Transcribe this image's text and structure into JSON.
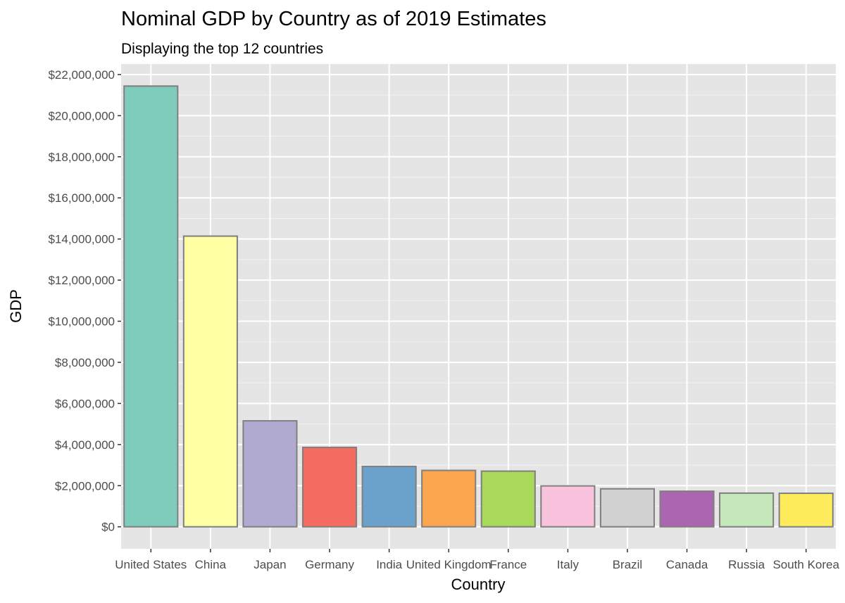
{
  "chart_data": {
    "type": "bar",
    "title": "Nominal GDP by Country as of 2019 Estimates",
    "subtitle": "Displaying the top 12 countries",
    "xlabel": "Country",
    "ylabel": "GDP",
    "categories": [
      "United States",
      "China",
      "Japan",
      "Germany",
      "India",
      "United Kingdom",
      "France",
      "Italy",
      "Brazil",
      "Canada",
      "Russia",
      "South Korea"
    ],
    "values": [
      21439453,
      14140163,
      5154475,
      3863344,
      2935570,
      2743586,
      2707074,
      1988636,
      1847020,
      1730914,
      1637892,
      1629532
    ],
    "colors": [
      "#7fcbbc",
      "#ffffa4",
      "#b0aad0",
      "#f46b5f",
      "#6ba2cc",
      "#fba64f",
      "#a9d95a",
      "#f9c2dd",
      "#d1d1d1",
      "#aa66af",
      "#c4e8ba",
      "#ffec5c"
    ],
    "bar_border_color": "#7f7f7f",
    "ylim": [
      -1071973,
      22511426
    ],
    "y_ticks": [
      0,
      2000000,
      4000000,
      6000000,
      8000000,
      10000000,
      12000000,
      14000000,
      16000000,
      18000000,
      20000000,
      22000000
    ],
    "y_tick_labels": [
      "$0",
      "$2,000,000",
      "$4,000,000",
      "$6,000,000",
      "$8,000,000",
      "$10,000,000",
      "$12,000,000",
      "$14,000,000",
      "$16,000,000",
      "$18,000,000",
      "$20,000,000",
      "$22,000,000"
    ],
    "grid": true,
    "panel_color": "#e5e5e5",
    "legend": "none"
  }
}
